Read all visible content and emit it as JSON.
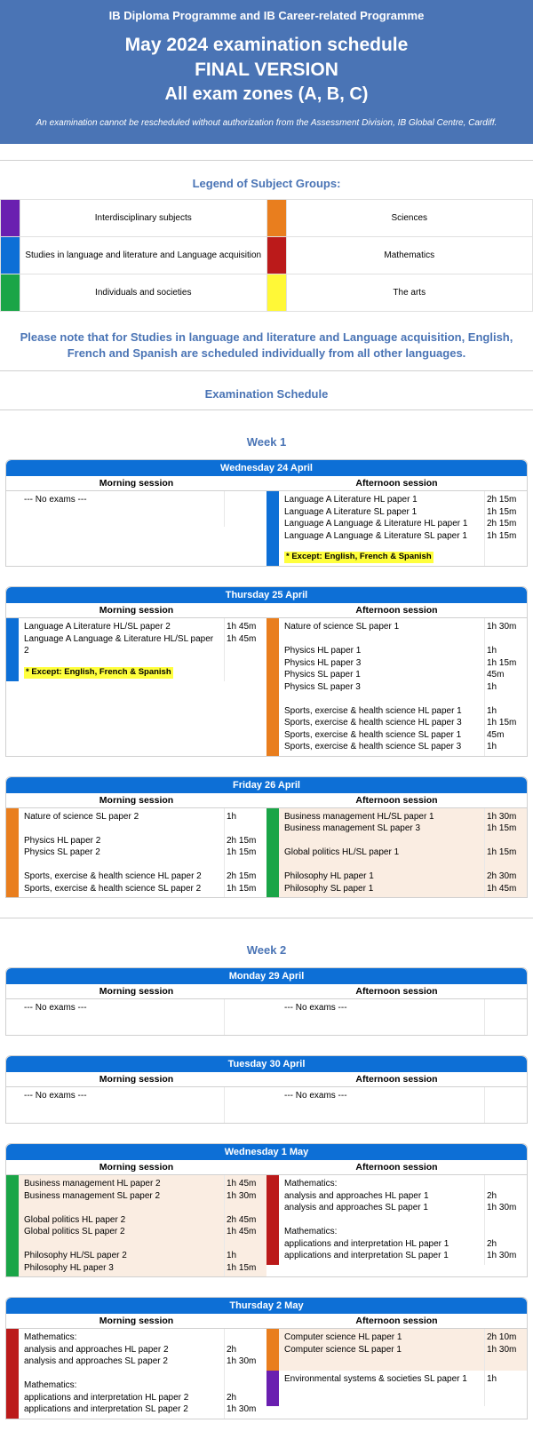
{
  "header": {
    "top": "IB Diploma Programme and IB Career-related Programme",
    "t1": "May 2024 examination schedule",
    "t2": "FINAL VERSION",
    "t3": "All exam zones (A, B, C)",
    "note": "An examination cannot be rescheduled without authorization from the Assessment Division, IB Global Centre, Cardiff."
  },
  "colors": {
    "purple": "#6a1fb0",
    "blue": "#0d6fd6",
    "green": "#1aa547",
    "orange": "#e97e1e",
    "red": "#bb1a1a",
    "yellow": "#fff837",
    "peach": "#faede2"
  },
  "legend": {
    "title": "Legend of Subject Groups:",
    "rows": [
      [
        "purple",
        "Interdisciplinary subjects",
        "orange",
        "Sciences"
      ],
      [
        "blue",
        "Studies in language and literature and Language acquisition",
        "red",
        "Mathematics"
      ],
      [
        "green",
        "Individuals and societies",
        "yellow",
        "The arts"
      ]
    ]
  },
  "notice": "Please note that for Studies in language and literature and Language acquisition, English, French and Spanish are scheduled individually from all other languages.",
  "schedTitle": "Examination Schedule",
  "weeks": {
    "w1": "Week 1",
    "w2": "Week 2"
  },
  "days": {
    "wed24": {
      "title": "Wednesday 24 April",
      "morning": {
        "label": "Morning session",
        "none": "--- No exams ---"
      },
      "afternoon": {
        "label": "Afternoon session",
        "color": "blue",
        "lines": [
          [
            "Language A Literature HL paper 1",
            "2h 15m"
          ],
          [
            "Language A Literature SL paper 1",
            "1h 15m"
          ],
          [
            "Language A Language & Literature HL paper 1",
            "2h 15m"
          ],
          [
            "Language A Language & Literature SL paper 1",
            "1h 15m"
          ]
        ],
        "except": "* Except: English, French & Spanish"
      }
    },
    "thu25": {
      "title": "Thursday 25 April",
      "morning": {
        "label": "Morning session",
        "color": "blue",
        "lines": [
          [
            "Language A Literature HL/SL paper 2",
            "1h 45m"
          ],
          [
            "Language A Language & Literature HL/SL paper 2",
            "1h 45m"
          ]
        ],
        "except": "* Except: English, French & Spanish"
      },
      "afternoon": {
        "label": "Afternoon session",
        "color": "orange",
        "lines": [
          [
            "Nature of science SL paper 1",
            "1h 30m"
          ],
          [
            "",
            ""
          ],
          [
            "Physics HL paper 1",
            "1h"
          ],
          [
            "Physics HL paper 3",
            "1h 15m"
          ],
          [
            "Physics SL paper 1",
            "45m"
          ],
          [
            "Physics SL paper 3",
            "1h"
          ],
          [
            "",
            ""
          ],
          [
            "Sports, exercise & health science HL paper 1",
            "1h"
          ],
          [
            "Sports, exercise & health science HL paper 3",
            "1h 15m"
          ],
          [
            "Sports, exercise & health science SL paper 1",
            "45m"
          ],
          [
            "Sports, exercise & health science SL paper 3",
            "1h"
          ]
        ]
      }
    },
    "fri26": {
      "title": "Friday 26 April",
      "morning": {
        "label": "Morning session",
        "color": "orange",
        "lines": [
          [
            "Nature of science SL paper 2",
            "1h"
          ],
          [
            "",
            ""
          ],
          [
            "Physics HL paper 2",
            "2h 15m"
          ],
          [
            "Physics SL paper 2",
            "1h 15m"
          ],
          [
            "",
            ""
          ],
          [
            "Sports, exercise & health science HL paper 2",
            "2h 15m"
          ],
          [
            "Sports, exercise & health science SL paper 2",
            "1h 15m"
          ]
        ]
      },
      "afternoon": {
        "label": "Afternoon session",
        "color": "green",
        "bg": "peach",
        "lines": [
          [
            "Business management HL/SL paper 1",
            "1h 30m"
          ],
          [
            "Business management SL paper 3",
            "1h 15m"
          ],
          [
            "",
            ""
          ],
          [
            "Global politics HL/SL paper 1",
            "1h 15m"
          ],
          [
            "",
            ""
          ],
          [
            "Philosophy HL paper 1",
            "2h 30m"
          ],
          [
            "Philosophy SL paper 1",
            "1h 45m"
          ]
        ]
      }
    },
    "mon29": {
      "title": "Monday 29 April",
      "morning": {
        "label": "Morning session",
        "none": "--- No exams ---"
      },
      "afternoon": {
        "label": "Afternoon session",
        "none": "--- No exams ---"
      }
    },
    "tue30": {
      "title": "Tuesday 30 April",
      "morning": {
        "label": "Morning session",
        "none": "--- No exams ---"
      },
      "afternoon": {
        "label": "Afternoon session",
        "none": "--- No exams ---"
      }
    },
    "wed1": {
      "title": "Wednesday 1 May",
      "morning": {
        "label": "Morning session",
        "color": "green",
        "bg": "peach",
        "lines": [
          [
            "Business management HL paper 2",
            "1h 45m"
          ],
          [
            "Business management SL paper 2",
            "1h 30m"
          ],
          [
            "",
            ""
          ],
          [
            "Global politics HL paper 2",
            "2h 45m"
          ],
          [
            "Global politics SL paper 2",
            "1h 45m"
          ],
          [
            "",
            ""
          ],
          [
            "Philosophy HL/SL paper 2",
            "1h"
          ],
          [
            "Philosophy HL paper 3",
            "1h 15m"
          ]
        ]
      },
      "afternoon": {
        "label": "Afternoon session",
        "color": "red",
        "lines": [
          [
            "Mathematics:",
            ""
          ],
          [
            "analysis and approaches HL paper 1",
            "2h"
          ],
          [
            "analysis and approaches SL paper 1",
            "1h 30m"
          ],
          [
            "",
            ""
          ],
          [
            "Mathematics:",
            ""
          ],
          [
            "applications and interpretation HL paper 1",
            "2h"
          ],
          [
            "applications and interpretation SL paper 1",
            "1h 30m"
          ]
        ]
      }
    },
    "thu2": {
      "title": "Thursday 2 May",
      "morning": {
        "label": "Morning session",
        "color": "red",
        "lines": [
          [
            "Mathematics:",
            ""
          ],
          [
            "analysis and approaches HL paper 2",
            "2h"
          ],
          [
            "analysis and approaches SL paper 2",
            "1h 30m"
          ],
          [
            "",
            ""
          ],
          [
            "Mathematics:",
            ""
          ],
          [
            "applications and interpretation HL paper 2",
            "2h"
          ],
          [
            "applications and interpretation SL paper 2",
            "1h 30m"
          ]
        ]
      },
      "afternoon": {
        "label": "Afternoon session",
        "segments": [
          {
            "color": "orange",
            "bg": "peach",
            "lines": [
              [
                "Computer science HL paper 1",
                "2h 10m"
              ],
              [
                "Computer science SL paper 1",
                "1h 30m"
              ],
              [
                "",
                ""
              ]
            ]
          },
          {
            "color": "purple",
            "lines": [
              [
                "Environmental systems & societies SL paper 1",
                "1h"
              ]
            ]
          }
        ]
      }
    }
  }
}
